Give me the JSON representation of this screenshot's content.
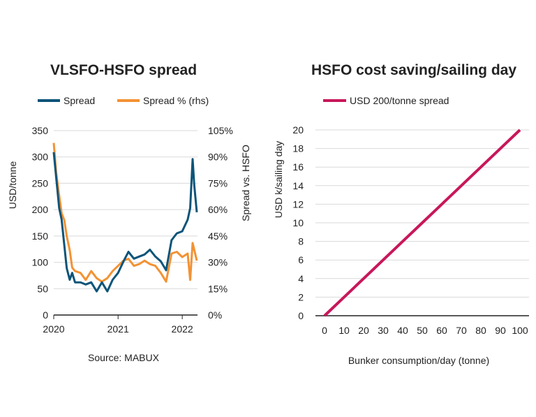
{
  "chart_data": [
    {
      "type": "line",
      "title": "VLSFO-HSFO spread",
      "source": "Source: MABUX",
      "ylabel": "USD/tonne",
      "y2label": "Spread  vs. HSFO",
      "xlabel": "",
      "ylim": [
        0,
        350
      ],
      "y2lim": [
        0,
        105
      ],
      "yticks": [
        "0",
        "50",
        "100",
        "150",
        "200",
        "250",
        "300",
        "350"
      ],
      "y2ticks": [
        "0%",
        "15%",
        "30%",
        "45%",
        "60%",
        "75%",
        "90%",
        "105%"
      ],
      "xticks": [
        "2020",
        "2021",
        "2022"
      ],
      "grid": true,
      "legend": "top",
      "colors": {
        "Spread": "#0d5479",
        "Spread % (rhs)": "#f39234"
      },
      "series": [
        {
          "name": "Spread",
          "axis": "left",
          "x": [
            "2020-01-01",
            "2020-01-15",
            "2020-02-01",
            "2020-02-15",
            "2020-03-01",
            "2020-03-15",
            "2020-04-01",
            "2020-04-15",
            "2020-05-01",
            "2020-06-01",
            "2020-07-01",
            "2020-08-01",
            "2020-09-01",
            "2020-10-01",
            "2020-11-01",
            "2020-12-01",
            "2021-01-01",
            "2021-02-01",
            "2021-03-01",
            "2021-04-01",
            "2021-05-01",
            "2021-06-01",
            "2021-07-01",
            "2021-08-01",
            "2021-09-01",
            "2021-10-01",
            "2021-11-01",
            "2021-12-01",
            "2022-01-01",
            "2022-02-01",
            "2022-02-15",
            "2022-03-01",
            "2022-03-10",
            "2022-03-25"
          ],
          "values": [
            309,
            261,
            203,
            181,
            133,
            89,
            67,
            80,
            62,
            62,
            58,
            62,
            45,
            62,
            45,
            67,
            80,
            102,
            120,
            107,
            111,
            115,
            124,
            111,
            102,
            85,
            142,
            155,
            159,
            181,
            203,
            296,
            247,
            195
          ]
        },
        {
          "name": "Spread % (rhs)",
          "axis": "right",
          "x": [
            "2020-01-01",
            "2020-01-15",
            "2020-02-01",
            "2020-02-15",
            "2020-03-01",
            "2020-03-15",
            "2020-04-01",
            "2020-04-15",
            "2020-05-01",
            "2020-06-01",
            "2020-07-01",
            "2020-08-01",
            "2020-09-01",
            "2020-10-01",
            "2020-11-01",
            "2020-12-01",
            "2021-01-01",
            "2021-02-01",
            "2021-03-01",
            "2021-04-01",
            "2021-05-01",
            "2021-06-01",
            "2021-07-01",
            "2021-08-01",
            "2021-09-01",
            "2021-10-01",
            "2021-11-01",
            "2021-12-01",
            "2022-01-01",
            "2022-02-01",
            "2022-02-15",
            "2022-03-01",
            "2022-03-25"
          ],
          "values": [
            98,
            81,
            68,
            58,
            54,
            45,
            37,
            27,
            25,
            24,
            20,
            25,
            21,
            19,
            21,
            25,
            28,
            31,
            32,
            28,
            29,
            31,
            29,
            28,
            24,
            19,
            35,
            36,
            33,
            35,
            20,
            41,
            31
          ]
        }
      ]
    },
    {
      "type": "line",
      "title": "HSFO cost saving/sailing day",
      "ylabel": "USD k/sailing day",
      "xlabel": "Bunker consumption/day (tonne)",
      "xlim": [
        0,
        100
      ],
      "ylim": [
        0,
        20
      ],
      "xticks": [
        "0",
        "10",
        "20",
        "30",
        "40",
        "50",
        "60",
        "70",
        "80",
        "90",
        "100"
      ],
      "yticks": [
        "0",
        "2",
        "4",
        "6",
        "8",
        "10",
        "12",
        "14",
        "16",
        "18",
        "20"
      ],
      "grid": true,
      "legend": "top",
      "colors": {
        "USD 200/tonne spread": "#c8175a"
      },
      "series": [
        {
          "name": "USD 200/tonne spread",
          "x": [
            0,
            10,
            20,
            30,
            40,
            50,
            60,
            70,
            80,
            90,
            100
          ],
          "values": [
            0,
            2,
            4,
            6,
            8,
            10,
            12,
            14,
            16,
            18,
            20
          ]
        }
      ]
    }
  ]
}
